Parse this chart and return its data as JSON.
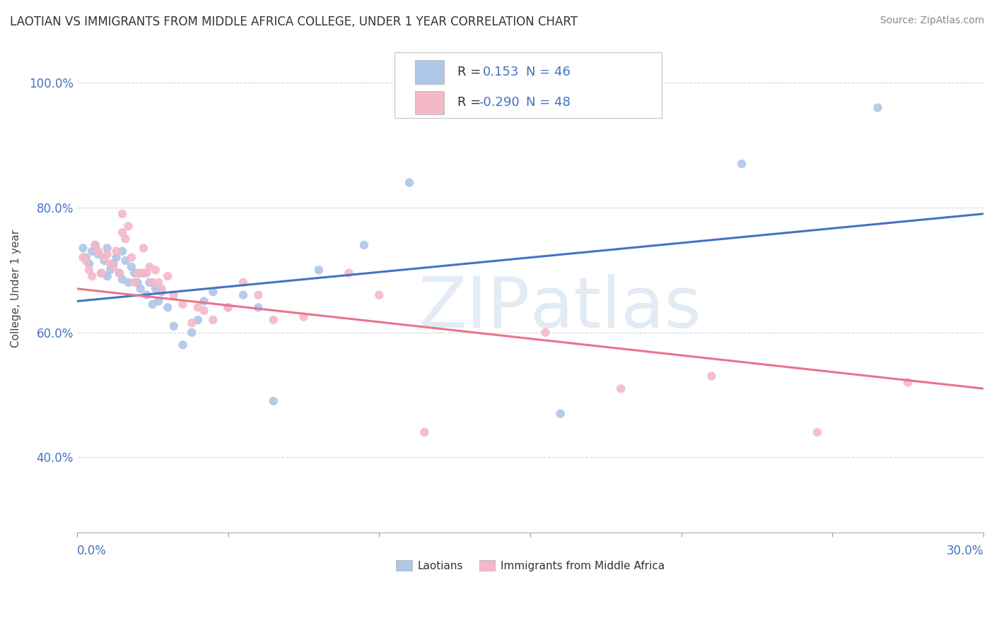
{
  "title": "LAOTIAN VS IMMIGRANTS FROM MIDDLE AFRICA COLLEGE, UNDER 1 YEAR CORRELATION CHART",
  "source": "Source: ZipAtlas.com",
  "ylabel": "College, Under 1 year",
  "xmin": 0.0,
  "xmax": 0.3,
  "ymin": 0.28,
  "ymax": 1.06,
  "yticks": [
    0.4,
    0.6,
    0.8,
    1.0
  ],
  "series1_name": "Laotians",
  "series1_color": "#aec6e8",
  "series1_line_color": "#4472c4",
  "series1_R": 0.153,
  "series1_N": 46,
  "series2_name": "Immigrants from Middle Africa",
  "series2_color": "#f4b8c8",
  "series2_line_color": "#e8748a",
  "series2_R": -0.29,
  "series2_N": 48,
  "legend_R_color": "#4472c4",
  "watermark_zip": "ZIP",
  "watermark_atlas": "atlas",
  "background_color": "#ffffff",
  "scatter1_x": [
    0.002,
    0.003,
    0.004,
    0.005,
    0.006,
    0.007,
    0.008,
    0.009,
    0.01,
    0.01,
    0.011,
    0.012,
    0.013,
    0.014,
    0.015,
    0.015,
    0.016,
    0.017,
    0.018,
    0.019,
    0.02,
    0.021,
    0.022,
    0.023,
    0.024,
    0.025,
    0.026,
    0.027,
    0.028,
    0.03,
    0.032,
    0.035,
    0.038,
    0.04,
    0.042,
    0.045,
    0.05,
    0.055,
    0.06,
    0.065,
    0.08,
    0.095,
    0.11,
    0.16,
    0.22,
    0.265
  ],
  "scatter1_y": [
    0.735,
    0.72,
    0.71,
    0.73,
    0.74,
    0.725,
    0.695,
    0.715,
    0.69,
    0.735,
    0.7,
    0.71,
    0.72,
    0.695,
    0.73,
    0.685,
    0.715,
    0.68,
    0.705,
    0.695,
    0.68,
    0.67,
    0.695,
    0.66,
    0.68,
    0.645,
    0.67,
    0.65,
    0.665,
    0.64,
    0.61,
    0.58,
    0.6,
    0.62,
    0.65,
    0.665,
    0.64,
    0.66,
    0.64,
    0.49,
    0.7,
    0.74,
    0.84,
    0.47,
    0.87,
    0.96
  ],
  "scatter2_x": [
    0.002,
    0.003,
    0.004,
    0.005,
    0.006,
    0.007,
    0.008,
    0.009,
    0.01,
    0.011,
    0.012,
    0.013,
    0.014,
    0.015,
    0.015,
    0.016,
    0.017,
    0.018,
    0.019,
    0.02,
    0.021,
    0.022,
    0.023,
    0.024,
    0.025,
    0.026,
    0.027,
    0.028,
    0.03,
    0.032,
    0.035,
    0.038,
    0.04,
    0.042,
    0.045,
    0.05,
    0.055,
    0.06,
    0.065,
    0.075,
    0.09,
    0.1,
    0.115,
    0.155,
    0.18,
    0.21,
    0.245,
    0.275
  ],
  "scatter2_y": [
    0.72,
    0.715,
    0.7,
    0.69,
    0.74,
    0.73,
    0.695,
    0.72,
    0.725,
    0.71,
    0.705,
    0.73,
    0.695,
    0.76,
    0.79,
    0.75,
    0.77,
    0.72,
    0.68,
    0.695,
    0.695,
    0.735,
    0.695,
    0.705,
    0.68,
    0.7,
    0.68,
    0.67,
    0.69,
    0.66,
    0.645,
    0.615,
    0.64,
    0.635,
    0.62,
    0.64,
    0.68,
    0.66,
    0.62,
    0.625,
    0.695,
    0.66,
    0.44,
    0.6,
    0.51,
    0.53,
    0.44,
    0.52
  ],
  "trendline1_x": [
    0.0,
    0.3
  ],
  "trendline1_y": [
    0.65,
    0.79
  ],
  "trendline2_x": [
    0.0,
    0.3
  ],
  "trendline2_y": [
    0.67,
    0.51
  ]
}
